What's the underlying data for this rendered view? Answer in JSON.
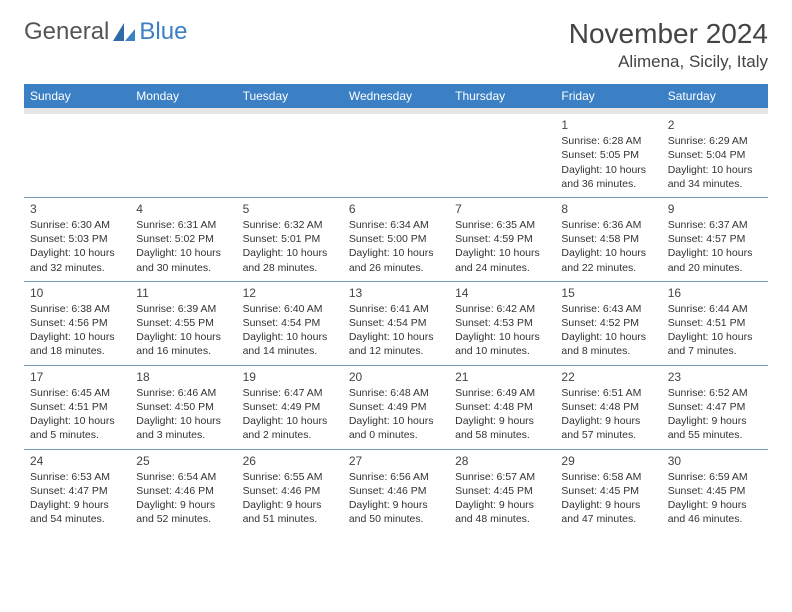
{
  "logo": {
    "text1": "General",
    "text2": "Blue",
    "icon_color": "#3b7fc4"
  },
  "title": "November 2024",
  "location": "Alimena, Sicily, Italy",
  "colors": {
    "header_bg": "#3b7fc4",
    "header_text": "#ffffff",
    "spacer_bg": "#e6e6e6",
    "cell_border": "#7a99b8",
    "text": "#333333",
    "title_text": "#444444"
  },
  "daysOfWeek": [
    "Sunday",
    "Monday",
    "Tuesday",
    "Wednesday",
    "Thursday",
    "Friday",
    "Saturday"
  ],
  "weeks": [
    [
      null,
      null,
      null,
      null,
      null,
      {
        "n": "1",
        "sunrise": "Sunrise: 6:28 AM",
        "sunset": "Sunset: 5:05 PM",
        "day1": "Daylight: 10 hours",
        "day2": "and 36 minutes."
      },
      {
        "n": "2",
        "sunrise": "Sunrise: 6:29 AM",
        "sunset": "Sunset: 5:04 PM",
        "day1": "Daylight: 10 hours",
        "day2": "and 34 minutes."
      }
    ],
    [
      {
        "n": "3",
        "sunrise": "Sunrise: 6:30 AM",
        "sunset": "Sunset: 5:03 PM",
        "day1": "Daylight: 10 hours",
        "day2": "and 32 minutes."
      },
      {
        "n": "4",
        "sunrise": "Sunrise: 6:31 AM",
        "sunset": "Sunset: 5:02 PM",
        "day1": "Daylight: 10 hours",
        "day2": "and 30 minutes."
      },
      {
        "n": "5",
        "sunrise": "Sunrise: 6:32 AM",
        "sunset": "Sunset: 5:01 PM",
        "day1": "Daylight: 10 hours",
        "day2": "and 28 minutes."
      },
      {
        "n": "6",
        "sunrise": "Sunrise: 6:34 AM",
        "sunset": "Sunset: 5:00 PM",
        "day1": "Daylight: 10 hours",
        "day2": "and 26 minutes."
      },
      {
        "n": "7",
        "sunrise": "Sunrise: 6:35 AM",
        "sunset": "Sunset: 4:59 PM",
        "day1": "Daylight: 10 hours",
        "day2": "and 24 minutes."
      },
      {
        "n": "8",
        "sunrise": "Sunrise: 6:36 AM",
        "sunset": "Sunset: 4:58 PM",
        "day1": "Daylight: 10 hours",
        "day2": "and 22 minutes."
      },
      {
        "n": "9",
        "sunrise": "Sunrise: 6:37 AM",
        "sunset": "Sunset: 4:57 PM",
        "day1": "Daylight: 10 hours",
        "day2": "and 20 minutes."
      }
    ],
    [
      {
        "n": "10",
        "sunrise": "Sunrise: 6:38 AM",
        "sunset": "Sunset: 4:56 PM",
        "day1": "Daylight: 10 hours",
        "day2": "and 18 minutes."
      },
      {
        "n": "11",
        "sunrise": "Sunrise: 6:39 AM",
        "sunset": "Sunset: 4:55 PM",
        "day1": "Daylight: 10 hours",
        "day2": "and 16 minutes."
      },
      {
        "n": "12",
        "sunrise": "Sunrise: 6:40 AM",
        "sunset": "Sunset: 4:54 PM",
        "day1": "Daylight: 10 hours",
        "day2": "and 14 minutes."
      },
      {
        "n": "13",
        "sunrise": "Sunrise: 6:41 AM",
        "sunset": "Sunset: 4:54 PM",
        "day1": "Daylight: 10 hours",
        "day2": "and 12 minutes."
      },
      {
        "n": "14",
        "sunrise": "Sunrise: 6:42 AM",
        "sunset": "Sunset: 4:53 PM",
        "day1": "Daylight: 10 hours",
        "day2": "and 10 minutes."
      },
      {
        "n": "15",
        "sunrise": "Sunrise: 6:43 AM",
        "sunset": "Sunset: 4:52 PM",
        "day1": "Daylight: 10 hours",
        "day2": "and 8 minutes."
      },
      {
        "n": "16",
        "sunrise": "Sunrise: 6:44 AM",
        "sunset": "Sunset: 4:51 PM",
        "day1": "Daylight: 10 hours",
        "day2": "and 7 minutes."
      }
    ],
    [
      {
        "n": "17",
        "sunrise": "Sunrise: 6:45 AM",
        "sunset": "Sunset: 4:51 PM",
        "day1": "Daylight: 10 hours",
        "day2": "and 5 minutes."
      },
      {
        "n": "18",
        "sunrise": "Sunrise: 6:46 AM",
        "sunset": "Sunset: 4:50 PM",
        "day1": "Daylight: 10 hours",
        "day2": "and 3 minutes."
      },
      {
        "n": "19",
        "sunrise": "Sunrise: 6:47 AM",
        "sunset": "Sunset: 4:49 PM",
        "day1": "Daylight: 10 hours",
        "day2": "and 2 minutes."
      },
      {
        "n": "20",
        "sunrise": "Sunrise: 6:48 AM",
        "sunset": "Sunset: 4:49 PM",
        "day1": "Daylight: 10 hours",
        "day2": "and 0 minutes."
      },
      {
        "n": "21",
        "sunrise": "Sunrise: 6:49 AM",
        "sunset": "Sunset: 4:48 PM",
        "day1": "Daylight: 9 hours",
        "day2": "and 58 minutes."
      },
      {
        "n": "22",
        "sunrise": "Sunrise: 6:51 AM",
        "sunset": "Sunset: 4:48 PM",
        "day1": "Daylight: 9 hours",
        "day2": "and 57 minutes."
      },
      {
        "n": "23",
        "sunrise": "Sunrise: 6:52 AM",
        "sunset": "Sunset: 4:47 PM",
        "day1": "Daylight: 9 hours",
        "day2": "and 55 minutes."
      }
    ],
    [
      {
        "n": "24",
        "sunrise": "Sunrise: 6:53 AM",
        "sunset": "Sunset: 4:47 PM",
        "day1": "Daylight: 9 hours",
        "day2": "and 54 minutes."
      },
      {
        "n": "25",
        "sunrise": "Sunrise: 6:54 AM",
        "sunset": "Sunset: 4:46 PM",
        "day1": "Daylight: 9 hours",
        "day2": "and 52 minutes."
      },
      {
        "n": "26",
        "sunrise": "Sunrise: 6:55 AM",
        "sunset": "Sunset: 4:46 PM",
        "day1": "Daylight: 9 hours",
        "day2": "and 51 minutes."
      },
      {
        "n": "27",
        "sunrise": "Sunrise: 6:56 AM",
        "sunset": "Sunset: 4:46 PM",
        "day1": "Daylight: 9 hours",
        "day2": "and 50 minutes."
      },
      {
        "n": "28",
        "sunrise": "Sunrise: 6:57 AM",
        "sunset": "Sunset: 4:45 PM",
        "day1": "Daylight: 9 hours",
        "day2": "and 48 minutes."
      },
      {
        "n": "29",
        "sunrise": "Sunrise: 6:58 AM",
        "sunset": "Sunset: 4:45 PM",
        "day1": "Daylight: 9 hours",
        "day2": "and 47 minutes."
      },
      {
        "n": "30",
        "sunrise": "Sunrise: 6:59 AM",
        "sunset": "Sunset: 4:45 PM",
        "day1": "Daylight: 9 hours",
        "day2": "and 46 minutes."
      }
    ]
  ]
}
